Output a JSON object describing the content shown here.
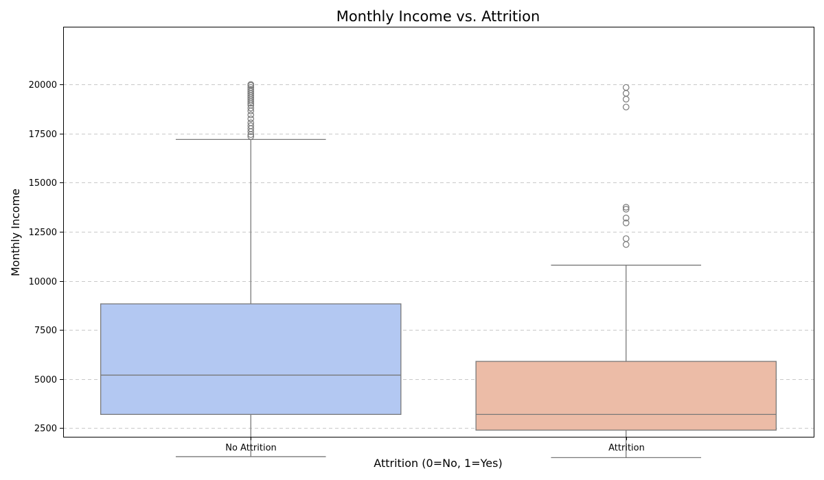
{
  "chart_data": {
    "type": "boxplot",
    "title": "Monthly Income vs. Attrition",
    "xlabel": "Attrition (0=No, 1=Yes)",
    "ylabel": "Monthly Income",
    "ylim": [
      0,
      21000
    ],
    "yticks": [
      2500,
      5000,
      7500,
      10000,
      12500,
      15000,
      17500,
      20000
    ],
    "grid": "y-dashed",
    "categories": [
      "No Attrition",
      "Attrition"
    ],
    "boxes": [
      {
        "category": "No Attrition",
        "color": "#b3c8f2",
        "whisker_low": 1050,
        "q1": 3200,
        "median": 5200,
        "q3": 8830,
        "whisker_high": 17200,
        "outliers": [
          17350,
          17450,
          17600,
          17750,
          17900,
          18050,
          18250,
          18450,
          18650,
          18800,
          18950,
          19050,
          19150,
          19250,
          19350,
          19450,
          19550,
          19650,
          19750,
          19850,
          19950,
          20000
        ]
      },
      {
        "category": "Attrition",
        "color": "#ecbca7",
        "whisker_low": 1000,
        "q1": 2400,
        "median": 3200,
        "q3": 5900,
        "whisker_high": 10800,
        "outliers": [
          11850,
          12150,
          12950,
          13200,
          13650,
          13750,
          18850,
          19250,
          19550,
          19850
        ]
      }
    ]
  }
}
